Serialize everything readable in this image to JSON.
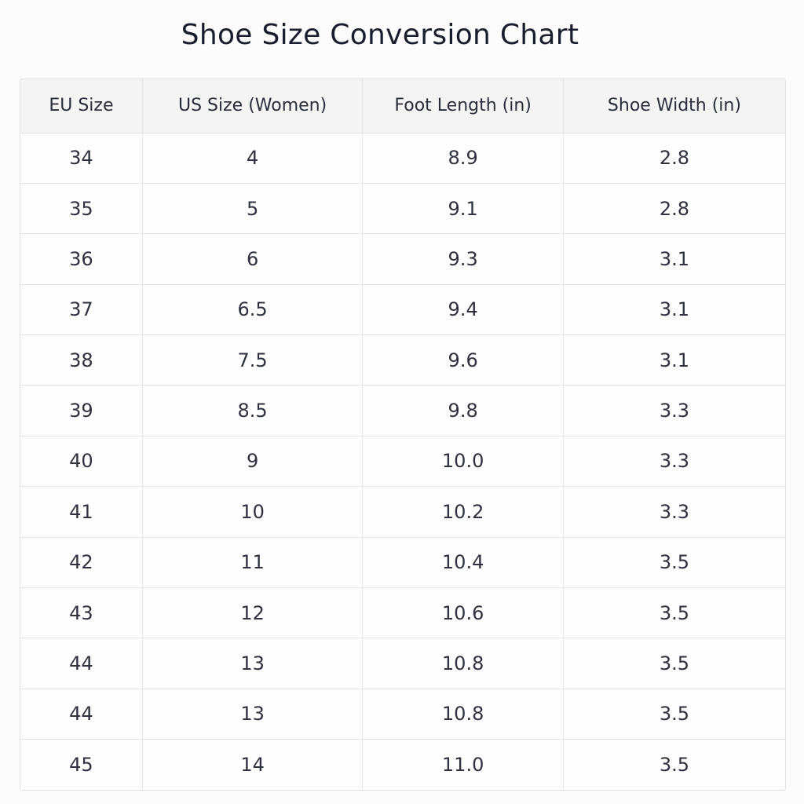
{
  "title": "Shoe Size Conversion Chart",
  "table": {
    "headers": [
      "EU Size",
      "US Size (Women)",
      "Foot Length (in)",
      "Shoe Width (in)"
    ],
    "rows": [
      [
        "34",
        "4",
        "8.9",
        "2.8"
      ],
      [
        "35",
        "5",
        "9.1",
        "2.8"
      ],
      [
        "36",
        "6",
        "9.3",
        "3.1"
      ],
      [
        "37",
        "6.5",
        "9.4",
        "3.1"
      ],
      [
        "38",
        "7.5",
        "9.6",
        "3.1"
      ],
      [
        "39",
        "8.5",
        "9.8",
        "3.3"
      ],
      [
        "40",
        "9",
        "10.0",
        "3.3"
      ],
      [
        "41",
        "10",
        "10.2",
        "3.3"
      ],
      [
        "42",
        "11",
        "10.4",
        "3.5"
      ],
      [
        "43",
        "12",
        "10.6",
        "3.5"
      ],
      [
        "44",
        "13",
        "10.8",
        "3.5"
      ],
      [
        "44",
        "13",
        "10.8",
        "3.5"
      ],
      [
        "45",
        "14",
        "11.0",
        "3.5"
      ]
    ]
  }
}
